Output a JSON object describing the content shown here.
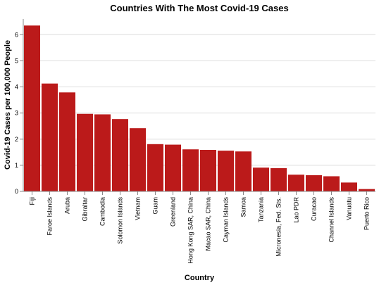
{
  "chart_data": {
    "type": "bar",
    "title": "Countries With The Most Covid-19 Cases",
    "xlabel": "Country",
    "ylabel": "Covid-19 Cases per 100,000 People",
    "categories": [
      "Fiji",
      "Faroe Islands",
      "Aruba",
      "Gibraltar",
      "Cambodia",
      "Solomon Islands",
      "Vietnam",
      "Guam",
      "Greenland",
      "Hong Kong SAR, China",
      "Macao SAR, China",
      "Cayman Islands",
      "Samoa",
      "Tanzania",
      "Micronesia, Fed. Sts.",
      "Lao PDR",
      "Curacao",
      "Channel Islands",
      "Vanuatu",
      "Puerto Rico"
    ],
    "values": [
      6.35,
      4.13,
      3.79,
      2.97,
      2.95,
      2.77,
      2.42,
      1.81,
      1.79,
      1.61,
      1.59,
      1.56,
      1.53,
      0.91,
      0.89,
      0.64,
      0.62,
      0.58,
      0.34,
      0.09
    ],
    "yticks": [
      0,
      1,
      2,
      3,
      4,
      5,
      6
    ],
    "ylim": [
      0,
      6.6
    ],
    "bar_color": "#bb1a1a",
    "grid": true,
    "legend": false
  }
}
